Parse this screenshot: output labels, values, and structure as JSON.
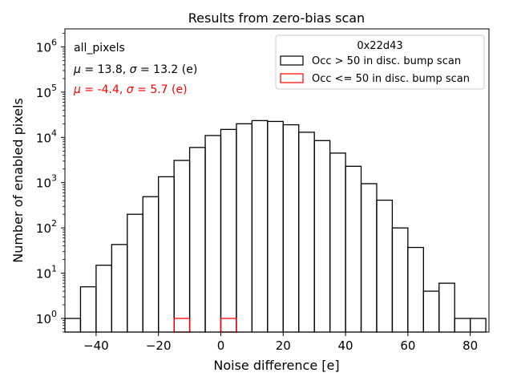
{
  "chart_data": {
    "type": "histogram",
    "title": "Results from zero-bias scan",
    "xlabel": "Noise difference [e]",
    "ylabel": "Number of enabled pixels",
    "xlim": [
      -50,
      86
    ],
    "ylim": [
      0.5,
      2500000
    ],
    "yscale": "log",
    "bin_width": 5,
    "x_ticks": [
      -40,
      -20,
      0,
      20,
      40,
      60,
      80
    ],
    "x_tick_labels": [
      "−40",
      "−20",
      "0",
      "20",
      "40",
      "60",
      "80"
    ],
    "y_ticks": [
      1,
      10,
      100,
      1000,
      10000,
      100000,
      1000000
    ],
    "y_tick_base": "10",
    "y_tick_exponents": [
      "0",
      "1",
      "2",
      "3",
      "4",
      "5",
      "6"
    ],
    "legend": {
      "title": "0x22d43",
      "position": "top-right",
      "entries": [
        {
          "label": "Occ > 50 in disc. bump scan",
          "color": "#000000"
        },
        {
          "label": "Occ <= 50 in disc. bump scan",
          "color": "#ff0000"
        }
      ]
    },
    "annotations": {
      "label": "all_pixels",
      "stats_black": {
        "mu": "13.8",
        "sigma": "13.2",
        "unit": "(e)",
        "color": "#000000"
      },
      "stats_red": {
        "mu": "-4.4",
        "sigma": "5.7",
        "unit": "(e)",
        "color": "#ff0000"
      }
    },
    "series": [
      {
        "name": "Occ > 50 in disc. bump scan",
        "color": "#000000",
        "bins": [
          {
            "x0": -50,
            "x1": -45,
            "count": 1
          },
          {
            "x0": -45,
            "x1": -40,
            "count": 5
          },
          {
            "x0": -40,
            "x1": -35,
            "count": 15
          },
          {
            "x0": -35,
            "x1": -30,
            "count": 43
          },
          {
            "x0": -30,
            "x1": -25,
            "count": 200
          },
          {
            "x0": -25,
            "x1": -20,
            "count": 490
          },
          {
            "x0": -20,
            "x1": -15,
            "count": 1350
          },
          {
            "x0": -15,
            "x1": -10,
            "count": 3100
          },
          {
            "x0": -10,
            "x1": -5,
            "count": 6000
          },
          {
            "x0": -5,
            "x1": 0,
            "count": 11000
          },
          {
            "x0": 0,
            "x1": 5,
            "count": 15000
          },
          {
            "x0": 5,
            "x1": 10,
            "count": 20000
          },
          {
            "x0": 10,
            "x1": 15,
            "count": 23500
          },
          {
            "x0": 15,
            "x1": 20,
            "count": 22500
          },
          {
            "x0": 20,
            "x1": 25,
            "count": 19000
          },
          {
            "x0": 25,
            "x1": 30,
            "count": 13000
          },
          {
            "x0": 30,
            "x1": 35,
            "count": 8500
          },
          {
            "x0": 35,
            "x1": 40,
            "count": 4500
          },
          {
            "x0": 40,
            "x1": 45,
            "count": 2300
          },
          {
            "x0": 45,
            "x1": 50,
            "count": 950
          },
          {
            "x0": 50,
            "x1": 55,
            "count": 410
          },
          {
            "x0": 55,
            "x1": 60,
            "count": 100
          },
          {
            "x0": 60,
            "x1": 65,
            "count": 37
          },
          {
            "x0": 65,
            "x1": 70,
            "count": 4
          },
          {
            "x0": 70,
            "x1": 75,
            "count": 6
          },
          {
            "x0": 75,
            "x1": 80,
            "count": 1
          },
          {
            "x0": 80,
            "x1": 85,
            "count": 1
          }
        ]
      },
      {
        "name": "Occ <= 50 in disc. bump scan",
        "color": "#ff0000",
        "bins": [
          {
            "x0": -15,
            "x1": -10,
            "count": 1
          },
          {
            "x0": 0,
            "x1": 5,
            "count": 1
          }
        ]
      }
    ]
  }
}
